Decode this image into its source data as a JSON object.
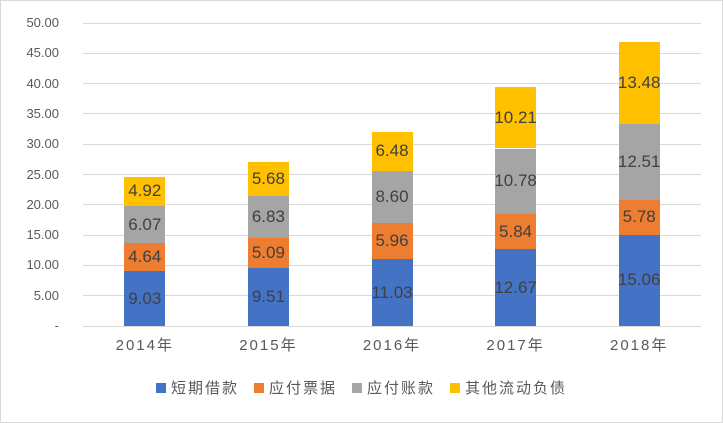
{
  "chart_data": {
    "type": "bar",
    "stacked": true,
    "title": "",
    "categories": [
      "2014年",
      "2015年",
      "2016年",
      "2017年",
      "2018年"
    ],
    "series": [
      {
        "name": "短期借款",
        "color": "#4472C4",
        "values": [
          9.03,
          9.51,
          11.03,
          12.67,
          15.06
        ]
      },
      {
        "name": "应付票据",
        "color": "#ED7D31",
        "values": [
          4.64,
          5.09,
          5.96,
          5.84,
          5.78
        ]
      },
      {
        "name": "应付账款",
        "color": "#A5A5A5",
        "values": [
          6.07,
          6.83,
          8.6,
          10.78,
          12.51
        ]
      },
      {
        "name": "其他流动负债",
        "color": "#FFC000",
        "values": [
          4.92,
          5.68,
          6.48,
          10.21,
          13.48
        ]
      }
    ],
    "xlabel": "",
    "ylabel": "",
    "ylim": [
      0,
      50
    ],
    "ytick_step": 5,
    "ytick_labels": [
      "-",
      "5.00",
      "10.00",
      "15.00",
      "20.00",
      "25.00",
      "30.00",
      "35.00",
      "40.00",
      "45.00",
      "50.00"
    ],
    "grid": true,
    "legend_position": "bottom",
    "data_labels": "inside-center",
    "data_label_format": "0.00"
  },
  "style": {
    "background": "#FFFFFF",
    "border_color": "#D9D9D9",
    "gridline_color": "#D9D9D9",
    "axis_text_color": "#595959",
    "data_label_color": "#404040"
  }
}
